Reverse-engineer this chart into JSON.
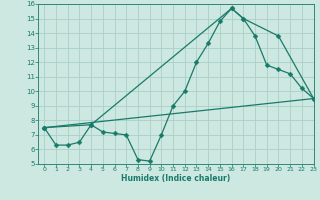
{
  "xlabel": "Humidex (Indice chaleur)",
  "bg_color": "#cce8e0",
  "grid_color": "#aacfc8",
  "line_color": "#1a7a6a",
  "xlim": [
    -0.5,
    23
  ],
  "ylim": [
    5,
    16
  ],
  "xticks": [
    0,
    1,
    2,
    3,
    4,
    5,
    6,
    7,
    8,
    9,
    10,
    11,
    12,
    13,
    14,
    15,
    16,
    17,
    18,
    19,
    20,
    21,
    22,
    23
  ],
  "yticks": [
    5,
    6,
    7,
    8,
    9,
    10,
    11,
    12,
    13,
    14,
    15,
    16
  ],
  "curve1_x": [
    0,
    1,
    2,
    3,
    4,
    5,
    6,
    7,
    8,
    9,
    10,
    11,
    12,
    13,
    14,
    15,
    16,
    17,
    18,
    19,
    20,
    21,
    22,
    23
  ],
  "curve1_y": [
    7.5,
    6.3,
    6.3,
    6.5,
    7.7,
    7.2,
    7.1,
    7.0,
    5.3,
    5.2,
    7.0,
    9.0,
    10.0,
    12.0,
    13.3,
    14.8,
    15.7,
    15.0,
    13.8,
    11.8,
    11.5,
    11.2,
    10.2,
    9.5
  ],
  "curve2_x": [
    0,
    4,
    16,
    17,
    20,
    23
  ],
  "curve2_y": [
    7.5,
    7.7,
    15.7,
    15.0,
    13.8,
    9.5
  ],
  "curve3_x": [
    0,
    23
  ],
  "curve3_y": [
    7.5,
    9.5
  ]
}
